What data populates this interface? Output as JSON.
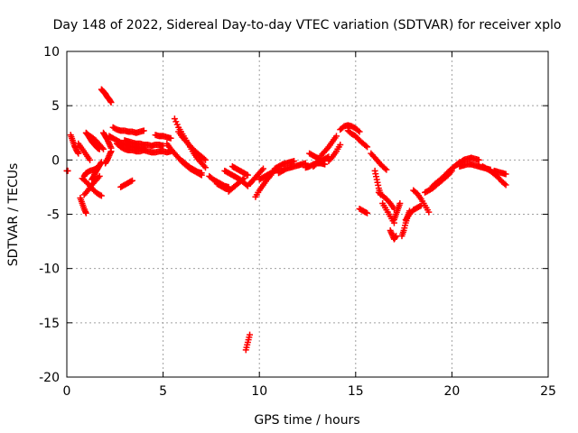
{
  "chart_data": {
    "type": "scatter",
    "title": "Day 148 of 2022, Sidereal Day-to-day VTEC variation (SDTVAR) for receiver xplo",
    "xlabel": "GPS time / hours",
    "ylabel": "SDTVAR / TECUs",
    "xlim": [
      0,
      25
    ],
    "ylim": [
      -20,
      10
    ],
    "xticks": [
      0,
      5,
      10,
      15,
      20,
      25
    ],
    "yticks": [
      -20,
      -15,
      -10,
      -5,
      0,
      5,
      10
    ],
    "grid": true,
    "marker": "+",
    "colors": {
      "points": "#ff0000",
      "grid": "#a0a0a0",
      "axes": "#000000"
    },
    "segments": [
      {
        "x": [
          0.0,
          0.05
        ],
        "y": [
          -1.0,
          -1.0
        ]
      },
      {
        "x": [
          0.2,
          0.3,
          0.4,
          0.5,
          0.6
        ],
        "y": [
          2.3,
          1.8,
          1.3,
          0.9,
          0.6
        ]
      },
      {
        "x": [
          0.6,
          0.8,
          1.0,
          1.2
        ],
        "y": [
          1.5,
          1.0,
          0.5,
          0.0
        ]
      },
      {
        "x": [
          0.7,
          0.8,
          0.9,
          1.0
        ],
        "y": [
          -3.5,
          -4.0,
          -4.5,
          -4.9
        ]
      },
      {
        "x": [
          0.8,
          1.0,
          1.2,
          1.4,
          1.6,
          1.8
        ],
        "y": [
          -1.7,
          -2.0,
          -2.4,
          -2.8,
          -3.1,
          -3.3
        ]
      },
      {
        "x": [
          0.9,
          1.1,
          1.3,
          1.5,
          1.7
        ],
        "y": [
          -3.2,
          -2.8,
          -2.3,
          -1.9,
          -1.5
        ]
      },
      {
        "x": [
          0.9,
          1.0,
          1.2,
          1.4,
          1.6
        ],
        "y": [
          -1.5,
          -1.2,
          -1.0,
          -0.9,
          -0.7
        ]
      },
      {
        "x": [
          1.0,
          1.1,
          1.2,
          1.3,
          1.4,
          1.5,
          1.6,
          1.7
        ],
        "y": [
          2.5,
          2.3,
          2.0,
          1.7,
          1.5,
          1.3,
          1.1,
          1.0
        ]
      },
      {
        "x": [
          1.1,
          1.3,
          1.5,
          1.7,
          1.9
        ],
        "y": [
          2.3,
          2.1,
          1.8,
          1.4,
          1.0
        ]
      },
      {
        "x": [
          1.3,
          1.4,
          1.5,
          1.6,
          1.7,
          1.8
        ],
        "y": [
          -1.8,
          -1.5,
          -1.1,
          -0.8,
          -0.5,
          -0.2
        ]
      },
      {
        "x": [
          1.8,
          1.9,
          2.0,
          2.1,
          2.2,
          2.3
        ],
        "y": [
          6.5,
          6.3,
          6.1,
          5.8,
          5.6,
          5.3
        ]
      },
      {
        "x": [
          1.9,
          2.0,
          2.1,
          2.2,
          2.3
        ],
        "y": [
          2.5,
          2.2,
          1.9,
          1.5,
          1.1
        ]
      },
      {
        "x": [
          2.0,
          2.1,
          2.2,
          2.3
        ],
        "y": [
          -0.3,
          0.0,
          0.4,
          0.8
        ]
      },
      {
        "x": [
          2.2,
          2.4,
          2.6,
          2.8,
          3.0,
          3.2,
          3.4,
          3.6,
          3.8,
          4.0
        ],
        "y": [
          2.2,
          2.0,
          1.8,
          1.6,
          1.4,
          1.3,
          1.2,
          1.2,
          1.1,
          1.0
        ]
      },
      {
        "x": [
          2.6,
          2.8,
          3.0,
          3.2,
          3.4,
          3.6,
          3.8,
          4.0,
          4.2,
          4.4,
          4.6,
          4.8,
          5.0,
          5.2,
          5.4
        ],
        "y": [
          1.5,
          1.2,
          1.0,
          0.9,
          0.9,
          0.8,
          0.8,
          0.9,
          0.8,
          0.7,
          0.7,
          0.8,
          0.8,
          0.7,
          0.8
        ]
      },
      {
        "x": [
          2.4,
          2.6,
          2.8,
          3.0,
          3.2,
          3.4,
          3.6,
          3.8,
          4.0
        ],
        "y": [
          3.0,
          2.8,
          2.7,
          2.7,
          2.6,
          2.6,
          2.5,
          2.6,
          2.7
        ]
      },
      {
        "x": [
          2.8,
          3.0,
          3.2,
          3.4
        ],
        "y": [
          -2.5,
          -2.3,
          -2.1,
          -1.9
        ]
      },
      {
        "x": [
          3.0,
          3.2,
          3.4,
          3.6,
          3.8,
          4.0,
          4.2,
          4.4,
          4.6,
          4.8,
          5.0
        ],
        "y": [
          1.8,
          1.7,
          1.6,
          1.5,
          1.5,
          1.4,
          1.4,
          1.3,
          1.4,
          1.4,
          1.3
        ]
      },
      {
        "x": [
          4.6,
          4.8,
          5.0,
          5.2,
          5.4
        ],
        "y": [
          2.3,
          2.2,
          2.2,
          2.1,
          2.0
        ]
      },
      {
        "x": [
          5.2,
          5.4,
          5.6,
          5.8,
          6.0,
          6.2,
          6.4,
          6.6,
          6.8,
          7.0
        ],
        "y": [
          1.5,
          1.0,
          0.6,
          0.2,
          -0.2,
          -0.5,
          -0.8,
          -1.0,
          -1.2,
          -1.4
        ]
      },
      {
        "x": [
          5.6,
          5.8,
          6.0,
          6.2,
          6.4,
          6.6,
          6.8,
          7.0,
          7.2
        ],
        "y": [
          3.8,
          3.0,
          2.4,
          1.8,
          1.2,
          0.6,
          0.1,
          -0.3,
          -0.7
        ]
      },
      {
        "x": [
          5.8,
          6.0,
          6.2,
          6.4,
          6.6,
          6.8,
          7.0,
          7.2
        ],
        "y": [
          2.6,
          2.1,
          1.7,
          1.3,
          0.9,
          0.6,
          0.3,
          0.0
        ]
      },
      {
        "x": [
          6.0,
          6.2,
          6.4,
          6.6,
          6.8,
          7.0
        ],
        "y": [
          -0.1,
          -0.4,
          -0.7,
          -0.9,
          -1.1,
          -1.2
        ]
      },
      {
        "x": [
          7.4,
          7.6,
          7.8,
          8.0,
          8.2,
          8.4
        ],
        "y": [
          -1.5,
          -1.8,
          -2.0,
          -2.2,
          -2.4,
          -2.5
        ]
      },
      {
        "x": [
          7.8,
          8.0,
          8.2,
          8.4
        ],
        "y": [
          -2.2,
          -2.4,
          -2.6,
          -2.7
        ]
      },
      {
        "x": [
          8.2,
          8.4,
          8.6,
          8.8,
          9.0,
          9.2,
          9.4
        ],
        "y": [
          -1.0,
          -1.2,
          -1.4,
          -1.6,
          -1.8,
          -2.1,
          -2.4
        ]
      },
      {
        "x": [
          8.4,
          8.6,
          8.8,
          9.0,
          9.2
        ],
        "y": [
          -2.9,
          -2.6,
          -2.3,
          -2.0,
          -1.7
        ]
      },
      {
        "x": [
          8.6,
          8.8,
          9.0,
          9.2,
          9.4
        ],
        "y": [
          -0.6,
          -0.8,
          -1.0,
          -1.2,
          -1.4
        ]
      },
      {
        "x": [
          9.3,
          9.4,
          9.5
        ],
        "y": [
          -17.5,
          -16.8,
          -16.1
        ]
      },
      {
        "x": [
          9.5,
          9.6,
          9.8,
          10.0,
          10.2
        ],
        "y": [
          -2.2,
          -2.0,
          -1.6,
          -1.2,
          -0.8
        ]
      },
      {
        "x": [
          9.8,
          10.0,
          10.2,
          10.4,
          10.6
        ],
        "y": [
          -3.4,
          -2.8,
          -2.3,
          -1.8,
          -1.4
        ]
      },
      {
        "x": [
          10.0,
          10.2,
          10.4,
          10.6,
          10.8,
          11.0
        ],
        "y": [
          -1.8,
          -1.6,
          -1.4,
          -1.2,
          -1.0,
          -0.8
        ]
      },
      {
        "x": [
          10.8,
          11.0,
          11.2,
          11.4,
          11.6,
          11.8
        ],
        "y": [
          -0.8,
          -0.6,
          -0.4,
          -0.3,
          -0.2,
          -0.1
        ]
      },
      {
        "x": [
          11.0,
          11.2,
          11.4,
          11.6,
          11.8,
          12.0,
          12.2,
          12.4
        ],
        "y": [
          -1.2,
          -1.0,
          -0.8,
          -0.7,
          -0.6,
          -0.5,
          -0.4,
          -0.3
        ]
      },
      {
        "x": [
          12.4,
          12.6,
          12.8,
          13.0,
          13.2
        ],
        "y": [
          -0.7,
          -0.6,
          -0.4,
          -0.3,
          -0.3
        ]
      },
      {
        "x": [
          12.6,
          12.8,
          13.0,
          13.2
        ],
        "y": [
          0.6,
          0.4,
          0.2,
          0.0
        ]
      },
      {
        "x": [
          13.0,
          13.2,
          13.4
        ],
        "y": [
          -0.2,
          -0.3,
          -0.4
        ]
      },
      {
        "x": [
          12.8,
          13.0,
          13.2,
          13.4,
          13.6
        ],
        "y": [
          -0.6,
          -0.3,
          -0.1,
          0.1,
          0.3
        ]
      },
      {
        "x": [
          13.6,
          13.8,
          14.0,
          14.2
        ],
        "y": [
          -0.1,
          0.3,
          0.8,
          1.4
        ]
      },
      {
        "x": [
          13.2,
          13.4,
          13.6,
          13.8,
          14.0
        ],
        "y": [
          0.4,
          0.8,
          1.2,
          1.7,
          2.2
        ]
      },
      {
        "x": [
          14.2,
          14.4,
          14.6,
          14.8,
          15.0,
          15.2
        ],
        "y": [
          2.8,
          3.1,
          3.2,
          3.1,
          2.9,
          2.6
        ]
      },
      {
        "x": [
          14.6,
          14.8,
          15.0,
          15.2,
          15.4,
          15.6
        ],
        "y": [
          2.7,
          2.4,
          2.2,
          1.8,
          1.5,
          1.2
        ]
      },
      {
        "x": [
          15.2,
          15.4,
          15.6
        ],
        "y": [
          -4.5,
          -4.7,
          -4.9
        ]
      },
      {
        "x": [
          15.8,
          16.0,
          16.2,
          16.4,
          16.6
        ],
        "y": [
          0.6,
          0.2,
          -0.2,
          -0.6,
          -0.9
        ]
      },
      {
        "x": [
          16.0,
          16.1,
          16.2,
          16.3
        ],
        "y": [
          -1.0,
          -1.8,
          -2.6,
          -3.2
        ]
      },
      {
        "x": [
          16.2,
          16.4,
          16.6,
          16.8,
          17.0
        ],
        "y": [
          -3.0,
          -3.3,
          -3.6,
          -4.0,
          -4.5
        ]
      },
      {
        "x": [
          16.4,
          16.6,
          16.8,
          17.0
        ],
        "y": [
          -4.0,
          -4.6,
          -5.2,
          -5.8
        ]
      },
      {
        "x": [
          16.8,
          16.9,
          17.0,
          17.1
        ],
        "y": [
          -6.5,
          -6.9,
          -7.3,
          -7.0
        ]
      },
      {
        "x": [
          17.0,
          17.1,
          17.2,
          17.3
        ],
        "y": [
          -5.5,
          -5.0,
          -4.5,
          -4.0
        ]
      },
      {
        "x": [
          17.4,
          17.5,
          17.6,
          17.7,
          17.8
        ],
        "y": [
          -7.0,
          -6.5,
          -5.8,
          -5.2,
          -4.7
        ]
      },
      {
        "x": [
          17.6,
          17.8,
          18.0,
          18.2,
          18.4
        ],
        "y": [
          -5.5,
          -5.0,
          -4.6,
          -4.4,
          -4.2
        ]
      },
      {
        "x": [
          18.0,
          18.2,
          18.4,
          18.6,
          18.8
        ],
        "y": [
          -2.8,
          -3.1,
          -3.6,
          -4.2,
          -4.8
        ]
      },
      {
        "x": [
          18.6,
          18.8,
          19.0,
          19.2,
          19.4,
          19.6,
          19.8,
          20.0
        ],
        "y": [
          -3.0,
          -2.8,
          -2.6,
          -2.3,
          -2.0,
          -1.7,
          -1.4,
          -1.0
        ]
      },
      {
        "x": [
          19.0,
          19.2,
          19.4,
          19.6,
          19.8,
          20.0,
          20.2,
          20.4
        ],
        "y": [
          -2.4,
          -2.1,
          -1.8,
          -1.5,
          -1.1,
          -0.8,
          -0.5,
          -0.2
        ]
      },
      {
        "x": [
          20.0,
          20.2,
          20.4,
          20.6,
          20.8,
          21.0,
          21.2,
          21.4
        ],
        "y": [
          -0.8,
          -0.5,
          -0.3,
          0.0,
          0.1,
          0.2,
          0.1,
          0.0
        ]
      },
      {
        "x": [
          20.4,
          20.6,
          20.8,
          21.0,
          21.2,
          21.4,
          21.6,
          21.8,
          22.0
        ],
        "y": [
          -0.6,
          -0.5,
          -0.4,
          -0.4,
          -0.5,
          -0.6,
          -0.7,
          -0.8,
          -0.9
        ]
      },
      {
        "x": [
          21.6,
          21.8,
          22.0,
          22.2,
          22.4,
          22.6,
          22.8
        ],
        "y": [
          -0.6,
          -0.8,
          -1.0,
          -1.3,
          -1.6,
          -2.0,
          -2.3
        ]
      },
      {
        "x": [
          22.2,
          22.4,
          22.6,
          22.8
        ],
        "y": [
          -1.0,
          -1.1,
          -1.2,
          -1.3
        ]
      }
    ]
  }
}
